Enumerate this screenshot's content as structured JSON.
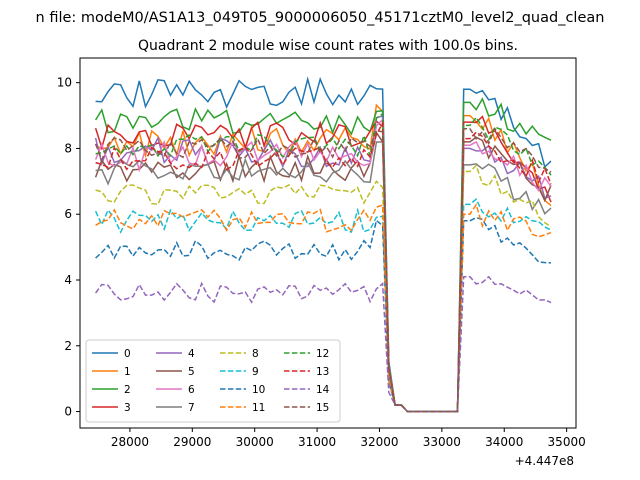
{
  "figure_title": "n file: modeM0/AS1A13_049T05_9000006050_45171cztM0_level2_quad_clean",
  "chart_data": {
    "type": "line",
    "title": "Quadrant 2 module wise count rates with 100.0s bins.",
    "xlabel": "",
    "ylabel": "",
    "x_offset_label": "+4.447e8",
    "xlim": [
      27200,
      35150
    ],
    "ylim": [
      -0.5,
      10.75
    ],
    "xticks": [
      28000,
      29000,
      30000,
      31000,
      32000,
      33000,
      34000,
      35000
    ],
    "yticks": [
      0,
      2,
      4,
      6,
      8,
      10
    ],
    "grid": false,
    "legend_position": "lower-left",
    "legend_columns": 4,
    "gap": {
      "drop_start": 32150,
      "zero_start": 32400,
      "zero_end": 33250,
      "recover_end": 33550
    },
    "x_start": 27450,
    "x_end": 34800,
    "step": 100,
    "series": [
      {
        "name": "0",
        "color": "#1f77b4",
        "style": "solid",
        "base": 9.7,
        "noise": 0.45,
        "peak": 10.2,
        "recover": 9.8,
        "end": 7.5
      },
      {
        "name": "1",
        "color": "#ff7f0e",
        "style": "solid",
        "base": 8.2,
        "noise": 0.45,
        "peak": 9.5,
        "recover": 9.0,
        "end": 6.5
      },
      {
        "name": "2",
        "color": "#2ca02c",
        "style": "solid",
        "base": 8.8,
        "noise": 0.4,
        "peak": 9.5,
        "recover": 9.4,
        "end": 8.1
      },
      {
        "name": "3",
        "color": "#d62728",
        "style": "solid",
        "base": 8.4,
        "noise": 0.4,
        "peak": 9.0,
        "recover": 8.8,
        "end": 6.5
      },
      {
        "name": "4",
        "color": "#9467bd",
        "style": "solid",
        "base": 7.9,
        "noise": 0.45,
        "peak": 9.3,
        "recover": 8.0,
        "end": 6.6
      },
      {
        "name": "5",
        "color": "#8c564b",
        "style": "solid",
        "base": 7.4,
        "noise": 0.4,
        "peak": 8.5,
        "recover": 8.2,
        "end": 6.5
      },
      {
        "name": "6",
        "color": "#e377c2",
        "style": "solid",
        "base": 7.8,
        "noise": 0.45,
        "peak": 8.9,
        "recover": 8.1,
        "end": 6.8
      },
      {
        "name": "7",
        "color": "#7f7f7f",
        "style": "solid",
        "base": 7.3,
        "noise": 0.4,
        "peak": 8.2,
        "recover": 7.5,
        "end": 6.0
      },
      {
        "name": "8",
        "color": "#bcbd22",
        "style": "dashed",
        "base": 6.6,
        "noise": 0.3,
        "peak": 7.2,
        "recover": 7.3,
        "end": 5.7
      },
      {
        "name": "9",
        "color": "#17becf",
        "style": "dashed",
        "base": 5.8,
        "noise": 0.35,
        "peak": 6.3,
        "recover": 6.3,
        "end": 5.3
      },
      {
        "name": "10",
        "color": "#1f77b4",
        "style": "dashed",
        "base": 4.9,
        "noise": 0.3,
        "peak": 6.0,
        "recover": 5.8,
        "end": 4.2
      },
      {
        "name": "11",
        "color": "#ff7f0e",
        "style": "dashed",
        "base": 5.8,
        "noise": 0.35,
        "peak": 6.6,
        "recover": 6.0,
        "end": 5.4
      },
      {
        "name": "12",
        "color": "#2ca02c",
        "style": "dashed",
        "base": 8.1,
        "noise": 0.35,
        "peak": 9.1,
        "recover": 8.7,
        "end": 7.4
      },
      {
        "name": "13",
        "color": "#d62728",
        "style": "dashed",
        "base": 7.7,
        "noise": 0.35,
        "peak": 8.8,
        "recover": 8.3,
        "end": 7.0
      },
      {
        "name": "14",
        "color": "#9467bd",
        "style": "dashed",
        "base": 3.6,
        "noise": 0.3,
        "peak": 3.9,
        "recover": 4.1,
        "end": 3.1
      },
      {
        "name": "15",
        "color": "#8c564b",
        "style": "dashed",
        "base": 8.0,
        "noise": 0.35,
        "peak": 8.9,
        "recover": 8.6,
        "end": 7.3
      }
    ]
  }
}
